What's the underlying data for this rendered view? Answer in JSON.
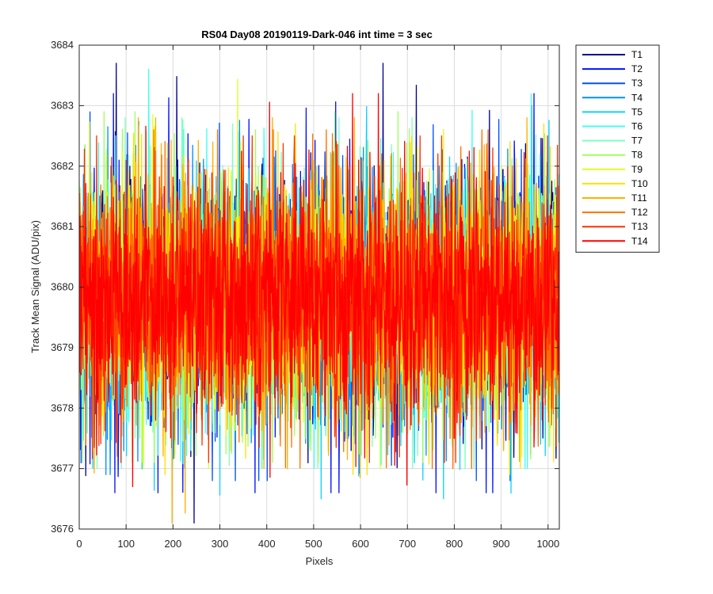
{
  "chart_data": {
    "type": "line",
    "title": "RS04 Day08 20190119-Dark-046 int time = 3 sec",
    "xlabel": "Pixels",
    "ylabel": "Track Mean Signal (ADU/pix)",
    "xlim": [
      0,
      1024
    ],
    "ylim": [
      3676,
      3684
    ],
    "xticks": [
      0,
      100,
      200,
      300,
      400,
      500,
      600,
      700,
      800,
      900,
      1000
    ],
    "yticks": [
      3676,
      3677,
      3678,
      3679,
      3680,
      3681,
      3682,
      3683,
      3684
    ],
    "grid": true,
    "legend_position": "outside-top-right",
    "num_points": 1024,
    "noise_description": "Noisy dark-frame signal per pixel; mean ~3679.8 ADU/pix, spread ~3677-3683",
    "series": [
      {
        "name": "T1",
        "color": "#00008f",
        "mean": 3679.8,
        "min": 3676.1,
        "max": 3683.7
      },
      {
        "name": "T2",
        "color": "#0010ff",
        "mean": 3679.8,
        "min": 3676.6,
        "max": 3683.2
      },
      {
        "name": "T3",
        "color": "#0050ff",
        "mean": 3679.8,
        "min": 3676.8,
        "max": 3682.9
      },
      {
        "name": "T4",
        "color": "#0090ff",
        "mean": 3679.8,
        "min": 3676.9,
        "max": 3683.0
      },
      {
        "name": "T5",
        "color": "#10d0ff",
        "mean": 3679.8,
        "min": 3676.5,
        "max": 3683.0
      },
      {
        "name": "T6",
        "color": "#40ffef",
        "mean": 3679.8,
        "min": 3677.0,
        "max": 3683.6
      },
      {
        "name": "T7",
        "color": "#7fffbf",
        "mean": 3679.8,
        "min": 3677.0,
        "max": 3682.8
      },
      {
        "name": "T8",
        "color": "#9fff5f",
        "mean": 3679.8,
        "min": 3677.1,
        "max": 3682.9
      },
      {
        "name": "T9",
        "color": "#dfff20",
        "mean": 3679.8,
        "min": 3677.0,
        "max": 3683.5
      },
      {
        "name": "T10",
        "color": "#ffe000",
        "mean": 3679.8,
        "min": 3676.9,
        "max": 3682.7
      },
      {
        "name": "T11",
        "color": "#ffb000",
        "mean": 3679.8,
        "min": 3676.1,
        "max": 3682.8
      },
      {
        "name": "T12",
        "color": "#ff7000",
        "mean": 3679.8,
        "min": 3677.0,
        "max": 3682.6
      },
      {
        "name": "T13",
        "color": "#ff3000",
        "mean": 3679.8,
        "min": 3677.1,
        "max": 3682.5
      },
      {
        "name": "T14",
        "color": "#ff0000",
        "mean": 3679.8,
        "min": 3676.7,
        "max": 3683.2
      }
    ]
  }
}
